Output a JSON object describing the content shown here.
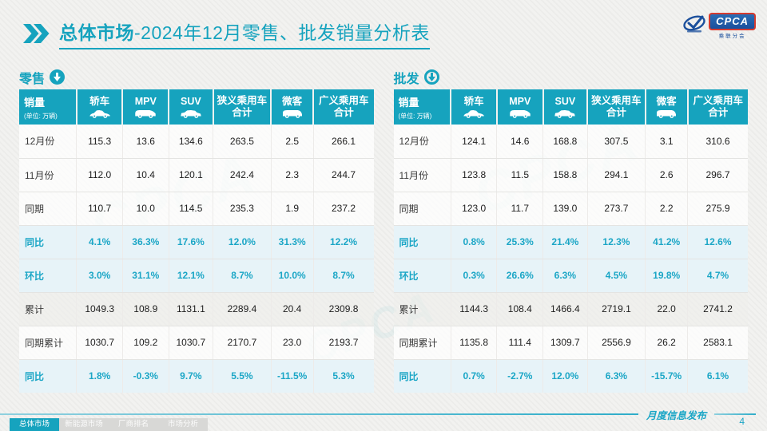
{
  "title": {
    "bold": "总体市场",
    "rest": "-2024年12月零售、批发销量分析表"
  },
  "logo": {
    "brand": "CPCA",
    "subtitle": "乘联分会"
  },
  "watermark": "CPCA",
  "colors": {
    "primary": "#16a3be",
    "percent_text": "#1ba6c6",
    "percent_bg": "#e7f3f8",
    "logo_blue": "#1b4f9c",
    "logo_red": "#d43b30"
  },
  "tables": [
    {
      "label": "零售",
      "icon_style": "filled",
      "first_col": {
        "title": "销量",
        "note": "(单位: 万辆)"
      },
      "columns": [
        {
          "label": "轿车",
          "icon": "sedan-car-icon"
        },
        {
          "label": "MPV",
          "icon": "mpv-car-icon"
        },
        {
          "label": "SUV",
          "icon": "suv-car-icon"
        },
        {
          "label": "狭义乘用车",
          "label2": "合计"
        },
        {
          "label": "微客",
          "icon": "microvan-icon"
        },
        {
          "label": "广义乘用车",
          "label2": "合计"
        }
      ],
      "rows": [
        {
          "label": "12月份",
          "style": "normal",
          "values": [
            "115.3",
            "13.6",
            "134.6",
            "263.5",
            "2.5",
            "266.1"
          ]
        },
        {
          "label": "11月份",
          "style": "normal",
          "values": [
            "112.0",
            "10.4",
            "120.1",
            "242.4",
            "2.3",
            "244.7"
          ]
        },
        {
          "label": "同期",
          "style": "normal",
          "values": [
            "110.7",
            "10.0",
            "114.5",
            "235.3",
            "1.9",
            "237.2"
          ]
        },
        {
          "label": "同比",
          "style": "percent",
          "values": [
            "4.1%",
            "36.3%",
            "17.6%",
            "12.0%",
            "31.3%",
            "12.2%"
          ]
        },
        {
          "label": "环比",
          "style": "percent",
          "values": [
            "3.0%",
            "31.1%",
            "12.1%",
            "8.7%",
            "10.0%",
            "8.7%"
          ]
        },
        {
          "label": "累计",
          "style": "grey",
          "values": [
            "1049.3",
            "108.9",
            "1131.1",
            "2289.4",
            "20.4",
            "2309.8"
          ]
        },
        {
          "label": "同期累计",
          "style": "normal",
          "values": [
            "1030.7",
            "109.2",
            "1030.7",
            "2170.7",
            "23.0",
            "2193.7"
          ]
        },
        {
          "label": "同比",
          "style": "percent",
          "values": [
            "1.8%",
            "-0.3%",
            "9.7%",
            "5.5%",
            "-11.5%",
            "5.3%"
          ]
        }
      ]
    },
    {
      "label": "批发",
      "icon_style": "outline",
      "first_col": {
        "title": "销量",
        "note": "(单位: 万辆)"
      },
      "columns": [
        {
          "label": "轿车",
          "icon": "sedan-car-icon"
        },
        {
          "label": "MPV",
          "icon": "mpv-car-icon"
        },
        {
          "label": "SUV",
          "icon": "suv-car-icon"
        },
        {
          "label": "狭义乘用车",
          "label2": "合计"
        },
        {
          "label": "微客",
          "icon": "microvan-icon"
        },
        {
          "label": "广义乘用车",
          "label2": "合计"
        }
      ],
      "rows": [
        {
          "label": "12月份",
          "style": "normal",
          "values": [
            "124.1",
            "14.6",
            "168.8",
            "307.5",
            "3.1",
            "310.6"
          ]
        },
        {
          "label": "11月份",
          "style": "normal",
          "values": [
            "123.8",
            "11.5",
            "158.8",
            "294.1",
            "2.6",
            "296.7"
          ]
        },
        {
          "label": "同期",
          "style": "normal",
          "values": [
            "123.0",
            "11.7",
            "139.0",
            "273.7",
            "2.2",
            "275.9"
          ]
        },
        {
          "label": "同比",
          "style": "percent",
          "values": [
            "0.8%",
            "25.3%",
            "21.4%",
            "12.3%",
            "41.2%",
            "12.6%"
          ]
        },
        {
          "label": "环比",
          "style": "percent",
          "values": [
            "0.3%",
            "26.6%",
            "6.3%",
            "4.5%",
            "19.8%",
            "4.7%"
          ]
        },
        {
          "label": "累计",
          "style": "grey",
          "values": [
            "1144.3",
            "108.4",
            "1466.4",
            "2719.1",
            "22.0",
            "2741.2"
          ]
        },
        {
          "label": "同期累计",
          "style": "normal",
          "values": [
            "1135.8",
            "111.4",
            "1309.7",
            "2556.9",
            "26.2",
            "2583.1"
          ]
        },
        {
          "label": "同比",
          "style": "percent",
          "values": [
            "0.7%",
            "-2.7%",
            "12.0%",
            "6.3%",
            "-15.7%",
            "6.1%"
          ]
        }
      ]
    }
  ],
  "footer": {
    "tabs": [
      {
        "label": "总体市场",
        "active": true
      },
      {
        "label": "新能源市场",
        "active": false
      },
      {
        "label": "厂商排名",
        "active": false
      },
      {
        "label": "市场分析",
        "active": false
      }
    ],
    "publish_label": "月度信息发布",
    "page": "4"
  }
}
